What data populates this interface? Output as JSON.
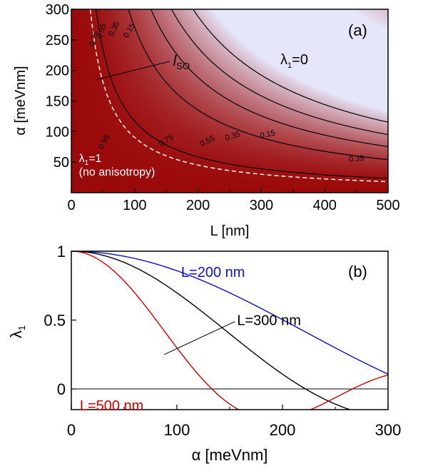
{
  "chart_data": [
    {
      "type": "contour",
      "panel_label": "(a)",
      "xlabel": "L [nm]",
      "ylabel": "α [meVnm]",
      "xlim": [
        0,
        500
      ],
      "ylim": [
        0,
        300
      ],
      "xticks": [
        "0",
        "100",
        "200",
        "300",
        "400",
        "500"
      ],
      "yticks": [
        "50",
        "100",
        "150",
        "200",
        "250",
        "300"
      ],
      "levels": [
        0.15,
        0.35,
        0.55,
        0.75,
        0.95
      ],
      "level_labels": [
        {
          "text": "0.15",
          "level": 0.15,
          "x": 92,
          "y": 265,
          "angle": -58
        },
        {
          "text": "0.35",
          "level": 0.35,
          "x": 68,
          "y": 268,
          "angle": -65
        },
        {
          "text": "0.55",
          "level": 0.55,
          "x": 48,
          "y": 264,
          "angle": -70
        },
        {
          "text": "0.75",
          "level": 0.75,
          "x": 36,
          "y": 252,
          "angle": -75
        },
        {
          "text": "0.15",
          "level": 0.15,
          "x": 310,
          "y": 95,
          "angle": -12
        },
        {
          "text": "0.35",
          "level": 0.35,
          "x": 255,
          "y": 92,
          "angle": -18
        },
        {
          "text": "0.55",
          "level": 0.55,
          "x": 215,
          "y": 84,
          "angle": -25
        },
        {
          "text": "0.75",
          "level": 0.75,
          "x": 150,
          "y": 85,
          "angle": -32
        },
        {
          "text": "0.35",
          "level": 0.35,
          "x": 450,
          "y": 55,
          "angle": -4
        },
        {
          "text": "0.95",
          "level": 0.95,
          "x": 52,
          "y": 83,
          "angle": -60
        }
      ],
      "dashed_curve": "l_SO",
      "annotations": [
        {
          "id": "lso",
          "text": "l",
          "subtext": "SO",
          "x": 155,
          "y": 210,
          "arrow_to": [
            40,
            185
          ]
        },
        {
          "id": "lambda0",
          "text": "λ",
          "subtext": "1",
          "tail": "=0",
          "x": 330,
          "y": 210
        },
        {
          "id": "lambda1",
          "text": "λ",
          "subtext": "1",
          "tail": "=1",
          "x": 12,
          "y": 50
        },
        {
          "id": "noaniso",
          "text": "(no anisotropy)",
          "x": 12,
          "y": 28
        }
      ],
      "colors": {
        "low": "#e6e6fa",
        "high": "#9b0a0a",
        "dashed": "#f2e8d8"
      }
    },
    {
      "type": "line",
      "panel_label": "(b)",
      "xlabel": "α [meVnm]",
      "ylabel": "λ",
      "ylabel_sub": "1",
      "xlim": [
        0,
        300
      ],
      "ylim": [
        -0.15,
        1
      ],
      "xticks": [
        "0",
        "100",
        "200",
        "300"
      ],
      "yticks": [
        {
          "value": 1,
          "text": "1"
        },
        {
          "value": 0.5,
          "text": "0.5"
        },
        {
          "value": 0,
          "text": "0"
        }
      ],
      "series": [
        {
          "name": "L=200 nm",
          "L": 200,
          "color": "#1010d0",
          "label": {
            "text": "L=200 nm",
            "x": 104,
            "y": 0.85
          }
        },
        {
          "name": "L=300 nm",
          "L": 300,
          "color": "#000000",
          "label": {
            "text": "L=300 nm",
            "x": 157,
            "y": 0.5,
            "arrow_to": [
              88,
              0.25
            ]
          }
        },
        {
          "name": "L=500 nm",
          "L": 500,
          "color": "#d00000",
          "label": {
            "text": "L=500 nm",
            "x": 8,
            "y": -0.12
          }
        }
      ]
    }
  ]
}
